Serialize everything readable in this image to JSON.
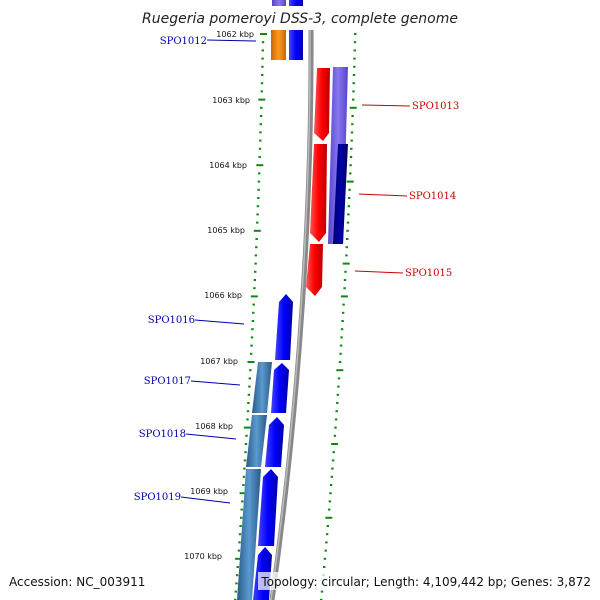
{
  "title": "Ruegeria pomeroyi DSS-3, complete genome",
  "accession": "Accession: NC_003911",
  "topology": "Topology: circular; Length: 4,109,442 bp; Genes: 3,872",
  "ticks": [
    "1062 kbp",
    "1063 kbp",
    "1064 kbp",
    "1065 kbp",
    "1066 kbp",
    "1067 kbp",
    "1068 kbp",
    "1069 kbp",
    "1070 kbp"
  ],
  "genes": [
    {
      "label": "SPO1012",
      "strand": "reverse"
    },
    {
      "label": "SPO1013",
      "strand": "forward"
    },
    {
      "label": "SPO1014",
      "strand": "forward"
    },
    {
      "label": "SPO1015",
      "strand": "forward"
    },
    {
      "label": "SPO1016",
      "strand": "reverse"
    },
    {
      "label": "SPO1017",
      "strand": "reverse"
    },
    {
      "label": "SPO1018",
      "strand": "reverse"
    },
    {
      "label": "SPO1019",
      "strand": "reverse"
    }
  ],
  "colors": {
    "forward": "#ff0000",
    "reverse": "#0000cc",
    "forward_label": "#cc0000",
    "reverse_label": "#0000aa",
    "backbone": "#888888",
    "tick_marks": "#118811",
    "orange": "#ff8800",
    "steel": "#3a74a8",
    "purple": "#7766dd",
    "navy": "#000077"
  }
}
